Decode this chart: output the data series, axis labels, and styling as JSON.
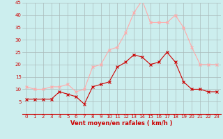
{
  "hours": [
    0,
    1,
    2,
    3,
    4,
    5,
    6,
    7,
    8,
    9,
    10,
    11,
    12,
    13,
    14,
    15,
    16,
    17,
    18,
    19,
    20,
    21,
    22,
    23
  ],
  "vent_moyen": [
    6,
    6,
    6,
    6,
    9,
    8,
    7,
    4,
    11,
    12,
    13,
    19,
    21,
    24,
    23,
    20,
    21,
    25,
    21,
    13,
    10,
    10,
    9,
    9
  ],
  "rafales": [
    11,
    10,
    10,
    11,
    11,
    12,
    9,
    10,
    19,
    20,
    26,
    27,
    33,
    41,
    46,
    37,
    37,
    37,
    40,
    35,
    27,
    20,
    20,
    20
  ],
  "xlabel": "Vent moyen/en rafales ( km/h )",
  "ylim": [
    0,
    45
  ],
  "xlim_min": -0.5,
  "xlim_max": 23.5,
  "yticks": [
    0,
    5,
    10,
    15,
    20,
    25,
    30,
    35,
    40,
    45
  ],
  "xticks": [
    0,
    1,
    2,
    3,
    4,
    5,
    6,
    7,
    8,
    9,
    10,
    11,
    12,
    13,
    14,
    15,
    16,
    17,
    18,
    19,
    20,
    21,
    22,
    23
  ],
  "color_moyen": "#cc0000",
  "color_rafales": "#ffaaaa",
  "bg_color": "#cceeee",
  "grid_color": "#aabbbb",
  "linewidth": 0.8,
  "markersize": 2.5,
  "tick_fontsize": 5.0,
  "xlabel_fontsize": 6.0
}
